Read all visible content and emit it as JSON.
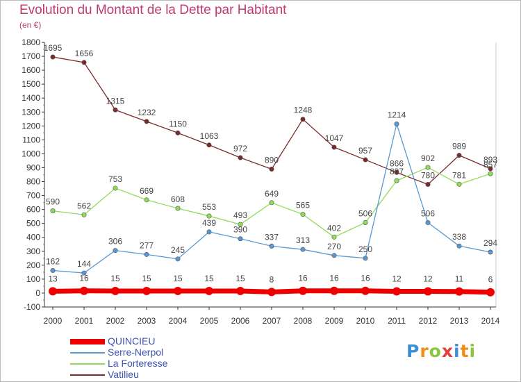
{
  "chart_data": {
    "type": "line",
    "title": "Evolution du Montant de la Dette par Habitant",
    "subtitle": "(en €)",
    "x": [
      "2000",
      "2001",
      "2002",
      "2003",
      "2004",
      "2005",
      "2006",
      "2007",
      "2008",
      "2009",
      "2010",
      "2011",
      "2012",
      "2013",
      "2014"
    ],
    "ylim": [
      -100,
      1800
    ],
    "yticks": [
      "-100",
      "0",
      "100",
      "200",
      "300",
      "400",
      "500",
      "600",
      "700",
      "800",
      "900",
      "1000",
      "1100",
      "1200",
      "1300",
      "1400",
      "1500",
      "1600",
      "1700",
      "1800"
    ],
    "grid": false,
    "legend_position": "bottom-left",
    "series": [
      {
        "name": "QUINCIEU",
        "color": "#ee0000",
        "values": [
          13,
          16,
          15,
          15,
          15,
          15,
          15,
          8,
          16,
          16,
          16,
          12,
          12,
          11,
          6
        ],
        "labels": [
          "13",
          "16",
          "15",
          "15",
          "15",
          "15",
          "15",
          "8",
          "16",
          "16",
          "16",
          "12",
          "12",
          "11",
          "6"
        ]
      },
      {
        "name": "Serre-Nerpol",
        "color": "#5b97d1",
        "values": [
          162,
          144,
          306,
          277,
          245,
          439,
          390,
          337,
          313,
          270,
          250,
          1214,
          506,
          338,
          294
        ],
        "labels": [
          "162",
          "144",
          "306",
          "277",
          "245",
          "439",
          "390",
          "337",
          "313",
          "270",
          "250",
          "1214",
          "506",
          "338",
          "294"
        ]
      },
      {
        "name": "La Forteresse",
        "color": "#90dc5a",
        "values": [
          590,
          562,
          753,
          669,
          608,
          553,
          493,
          649,
          565,
          402,
          506,
          807,
          902,
          781,
          857
        ],
        "labels": [
          "590",
          "562",
          "753",
          "669",
          "608",
          "553",
          "493",
          "649",
          "565",
          "402",
          "506",
          "807",
          "902",
          "781",
          "857"
        ]
      },
      {
        "name": "Vatilieu",
        "color": "#7a2a2a",
        "values": [
          1695,
          1656,
          1315,
          1232,
          1150,
          1063,
          972,
          890,
          1248,
          1047,
          957,
          866,
          780,
          989,
          893
        ],
        "labels": [
          "1695",
          "1656",
          "1315",
          "1232",
          "1150",
          "1063",
          "972",
          "890",
          "1248",
          "1047",
          "957",
          "866",
          "780",
          "989",
          "893"
        ]
      }
    ]
  },
  "logo": {
    "letters": [
      {
        "ch": "P",
        "color": "#3b8fd6"
      },
      {
        "ch": "r",
        "color": "#f08c1a"
      },
      {
        "ch": "o",
        "color": "#8cc63f"
      },
      {
        "ch": "x",
        "color": "#e63d3d"
      },
      {
        "ch": "i",
        "color": "#3b8fd6"
      },
      {
        "ch": "t",
        "color": "#f08c1a"
      },
      {
        "ch": "i",
        "color": "#8cc63f"
      }
    ]
  }
}
